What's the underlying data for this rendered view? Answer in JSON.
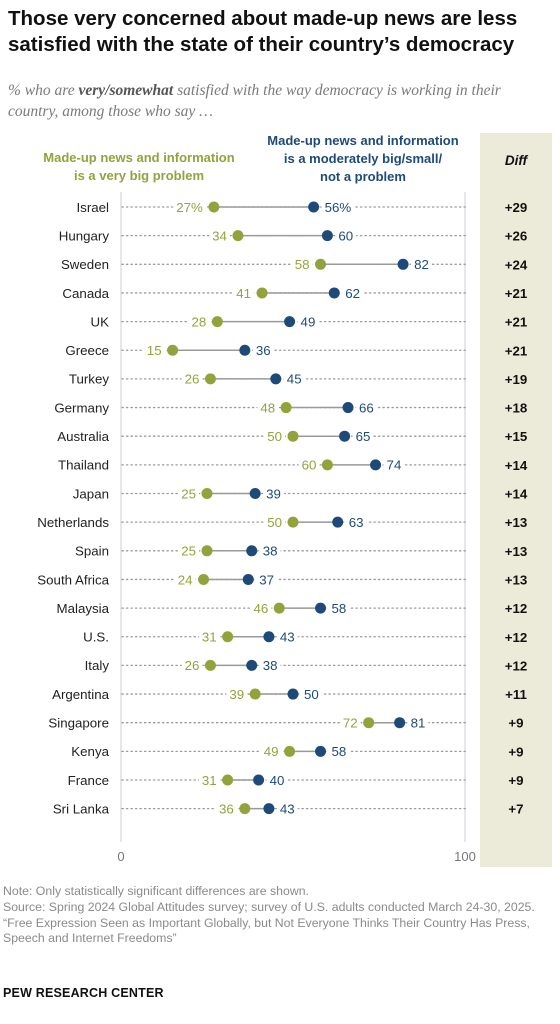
{
  "title": "Those very concerned about made-up news are less satisfied with the state of their country’s democracy",
  "subtitle_parts": {
    "pre": "% who are ",
    "bold": "very/somewhat",
    "post": " satisfied with the way democracy is working in their country, among those who say …"
  },
  "colors": {
    "green": "#94a23c",
    "blue": "#1e4a7a",
    "diff_bg": "#ecead9"
  },
  "chart_data": {
    "type": "dot",
    "title": "",
    "xlabel": "",
    "ylabel": "",
    "xlim": [
      0,
      100
    ],
    "x_ticks": [
      "0",
      "100"
    ],
    "legend_position": "top",
    "categories": [
      "Israel",
      "Hungary",
      "Sweden",
      "Canada",
      "UK",
      "Greece",
      "Turkey",
      "Germany",
      "Australia",
      "Thailand",
      "Japan",
      "Netherlands",
      "Spain",
      "South Africa",
      "Malaysia",
      "U.S.",
      "Italy",
      "Argentina",
      "Singapore",
      "Kenya",
      "France",
      "Sri Lanka"
    ],
    "series": [
      {
        "name": "Made-up news and information is a very big problem",
        "name_lines": [
          "Made-up news and information",
          "is a very big problem"
        ],
        "color": "#94a23c",
        "values": [
          27,
          34,
          58,
          41,
          28,
          15,
          26,
          48,
          50,
          60,
          25,
          50,
          25,
          24,
          46,
          31,
          26,
          39,
          72,
          49,
          31,
          36
        ],
        "labels": [
          "27%",
          "34",
          "58",
          "41",
          "28",
          "15",
          "26",
          "48",
          "50",
          "60",
          "25",
          "50",
          "25",
          "24",
          "46",
          "31",
          "26",
          "39",
          "72",
          "49",
          "31",
          "36"
        ]
      },
      {
        "name": "Made-up news and information is a moderately big/small/not a problem",
        "name_lines": [
          "Made-up news and information",
          "is a moderately big/small/",
          "not a problem"
        ],
        "color": "#1e4a7a",
        "values": [
          56,
          60,
          82,
          62,
          49,
          36,
          45,
          66,
          65,
          74,
          39,
          63,
          38,
          37,
          58,
          43,
          38,
          50,
          81,
          58,
          40,
          43
        ],
        "labels": [
          "56%",
          "60",
          "82",
          "62",
          "49",
          "36",
          "45",
          "66",
          "65",
          "74",
          "39",
          "63",
          "38",
          "37",
          "58",
          "43",
          "38",
          "50",
          "81",
          "58",
          "40",
          "43"
        ]
      }
    ],
    "diff_header": "Diff",
    "diff": [
      "+29",
      "+26",
      "+24",
      "+21",
      "+21",
      "+21",
      "+19",
      "+18",
      "+15",
      "+14",
      "+14",
      "+13",
      "+13",
      "+13",
      "+12",
      "+12",
      "+12",
      "+11",
      "+9",
      "+9",
      "+9",
      "+7"
    ]
  },
  "notes": {
    "note": "Note: Only statistically significant differences are shown.",
    "source": "Source: Spring 2024 Global Attitudes survey; survey of U.S. adults conducted March 24-30, 2025.",
    "report": "“Free Expression Seen as Important Globally, but Not Everyone Thinks Their Country Has Press, Speech and Internet Freedoms”"
  },
  "brand": "PEW RESEARCH CENTER"
}
